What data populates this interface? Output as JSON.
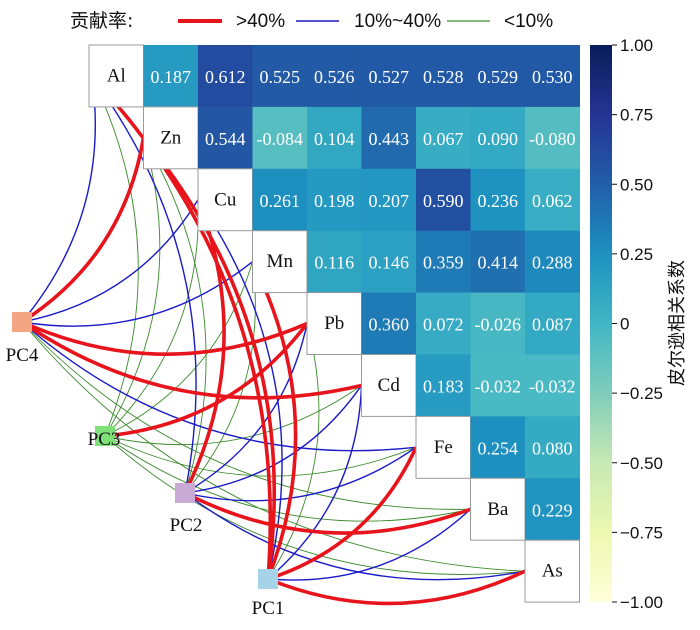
{
  "legend": {
    "title": "贡献率:",
    "entries": [
      {
        "label": ">40%",
        "color": "#e8141c"
      },
      {
        "label": "10%~40%",
        "color": "#1a1ac8"
      },
      {
        "label": "<10%",
        "color": "#3a8a2a"
      }
    ]
  },
  "colorbar": {
    "title": "皮尔逊相关系数",
    "ticks": [
      "1.00",
      "0.75",
      "0.50",
      "0.25",
      "0",
      "−0.25",
      "−0.50",
      "−0.75",
      "−1.00"
    ],
    "colors": [
      "#ffffd9",
      "#edf8b1",
      "#c7e9b4",
      "#7fcdbb",
      "#41b6c4",
      "#1d91c0",
      "#225ea8",
      "#253494",
      "#081d58"
    ]
  },
  "chart_data": {
    "type": "heatmap",
    "variables": [
      "Al",
      "Zn",
      "Cu",
      "Mn",
      "Pb",
      "Cd",
      "Fe",
      "Ba",
      "As"
    ],
    "vlim": [
      -1,
      1
    ],
    "matrix": [
      [
        null,
        0.187,
        0.612,
        0.525,
        0.526,
        0.527,
        0.528,
        0.529,
        0.53
      ],
      [
        null,
        null,
        0.544,
        -0.084,
        0.104,
        0.443,
        0.067,
        0.09,
        -0.08
      ],
      [
        null,
        null,
        null,
        0.261,
        0.198,
        0.207,
        0.59,
        0.236,
        0.062
      ],
      [
        null,
        null,
        null,
        null,
        0.116,
        0.146,
        0.359,
        0.414,
        0.288
      ],
      [
        null,
        null,
        null,
        null,
        null,
        0.36,
        0.072,
        -0.026,
        0.087
      ],
      [
        null,
        null,
        null,
        null,
        null,
        null,
        0.183,
        -0.032,
        -0.032
      ],
      [
        null,
        null,
        null,
        null,
        null,
        null,
        null,
        0.254,
        0.08
      ],
      [
        null,
        null,
        null,
        null,
        null,
        null,
        null,
        null,
        0.229
      ],
      [
        null,
        null,
        null,
        null,
        null,
        null,
        null,
        null,
        null
      ]
    ],
    "labels": [
      [
        "",
        "0.187",
        "0.612",
        "0.525",
        "0.526",
        "0.527",
        "0.528",
        "0.529",
        "0.530"
      ],
      [
        "",
        "",
        "0.544",
        "-0.084",
        "0.104",
        "0.443",
        "0.067",
        "0.090",
        "-0.080"
      ],
      [
        "",
        "",
        "",
        "0.261",
        "0.198",
        "0.207",
        "0.590",
        "0.236",
        "0.062"
      ],
      [
        "",
        "",
        "",
        "",
        "0.116",
        "0.146",
        "0.359",
        "0.414",
        "0.288"
      ],
      [
        "",
        "",
        "",
        "",
        "",
        "0.360",
        "0.072",
        "-0.026",
        "0.087"
      ],
      [
        "",
        "",
        "",
        "",
        "",
        "",
        "0.183",
        "-0.032",
        "-0.032"
      ],
      [
        "",
        "",
        "",
        "",
        "",
        "",
        "",
        "0.254",
        "0.080"
      ],
      [
        "",
        "",
        "",
        "",
        "",
        "",
        "",
        "",
        "0.229"
      ],
      [
        "",
        "",
        "",
        "",
        "",
        "",
        "",
        "",
        ""
      ]
    ],
    "components": [
      {
        "name": "PC4",
        "color": "#f4a582"
      },
      {
        "name": "PC3",
        "color": "#7fe07a"
      },
      {
        "name": "PC2",
        "color": "#c9a9d6"
      },
      {
        "name": "PC1",
        "color": "#a6d3e8"
      }
    ],
    "links": [
      {
        "from": "PC4",
        "to": "Al",
        "level": "10%~40%"
      },
      {
        "from": "PC4",
        "to": "Zn",
        "level": ">40%"
      },
      {
        "from": "PC4",
        "to": "Cu",
        "level": "10%~40%"
      },
      {
        "from": "PC4",
        "to": "Mn",
        "level": "10%~40%"
      },
      {
        "from": "PC4",
        "to": "Pb",
        "level": ">40%"
      },
      {
        "from": "PC4",
        "to": "Cd",
        "level": ">40%"
      },
      {
        "from": "PC4",
        "to": "Fe",
        "level": "10%~40%"
      },
      {
        "from": "PC4",
        "to": "Ba",
        "level": "<10%"
      },
      {
        "from": "PC4",
        "to": "As",
        "level": "<10%"
      },
      {
        "from": "PC3",
        "to": "Al",
        "level": "<10%"
      },
      {
        "from": "PC3",
        "to": "Zn",
        "level": "<10%"
      },
      {
        "from": "PC3",
        "to": "Cu",
        "level": "<10%"
      },
      {
        "from": "PC3",
        "to": "Mn",
        "level": "<10%"
      },
      {
        "from": "PC3",
        "to": "Pb",
        "level": ">40%"
      },
      {
        "from": "PC3",
        "to": "Cd",
        "level": "<10%"
      },
      {
        "from": "PC3",
        "to": "Fe",
        "level": "<10%"
      },
      {
        "from": "PC3",
        "to": "Ba",
        "level": "<10%"
      },
      {
        "from": "PC3",
        "to": "As",
        "level": "<10%"
      },
      {
        "from": "PC2",
        "to": "Al",
        "level": "10%~40%"
      },
      {
        "from": "PC2",
        "to": "Zn",
        "level": "<10%"
      },
      {
        "from": "PC2",
        "to": "Cu",
        "level": ">40%"
      },
      {
        "from": "PC2",
        "to": "Mn",
        "level": "<10%"
      },
      {
        "from": "PC2",
        "to": "Pb",
        "level": "10%~40%"
      },
      {
        "from": "PC2",
        "to": "Cd",
        "level": "10%~40%"
      },
      {
        "from": "PC2",
        "to": "Fe",
        "level": "10%~40%"
      },
      {
        "from": "PC2",
        "to": "Ba",
        "level": ">40%"
      },
      {
        "from": "PC2",
        "to": "As",
        "level": "10%~40%"
      },
      {
        "from": "PC1",
        "to": "Al",
        "level": ">40%"
      },
      {
        "from": "PC1",
        "to": "Zn",
        "level": ">40%"
      },
      {
        "from": "PC1",
        "to": "Cu",
        "level": "10%~40%"
      },
      {
        "from": "PC1",
        "to": "Mn",
        "level": ">40%"
      },
      {
        "from": "PC1",
        "to": "Pb",
        "level": "<10%"
      },
      {
        "from": "PC1",
        "to": "Cd",
        "level": "10%~40%"
      },
      {
        "from": "PC1",
        "to": "Fe",
        "level": ">40%"
      },
      {
        "from": "PC1",
        "to": "Ba",
        "level": "10%~40%"
      },
      {
        "from": "PC1",
        "to": "As",
        "level": ">40%"
      }
    ]
  }
}
